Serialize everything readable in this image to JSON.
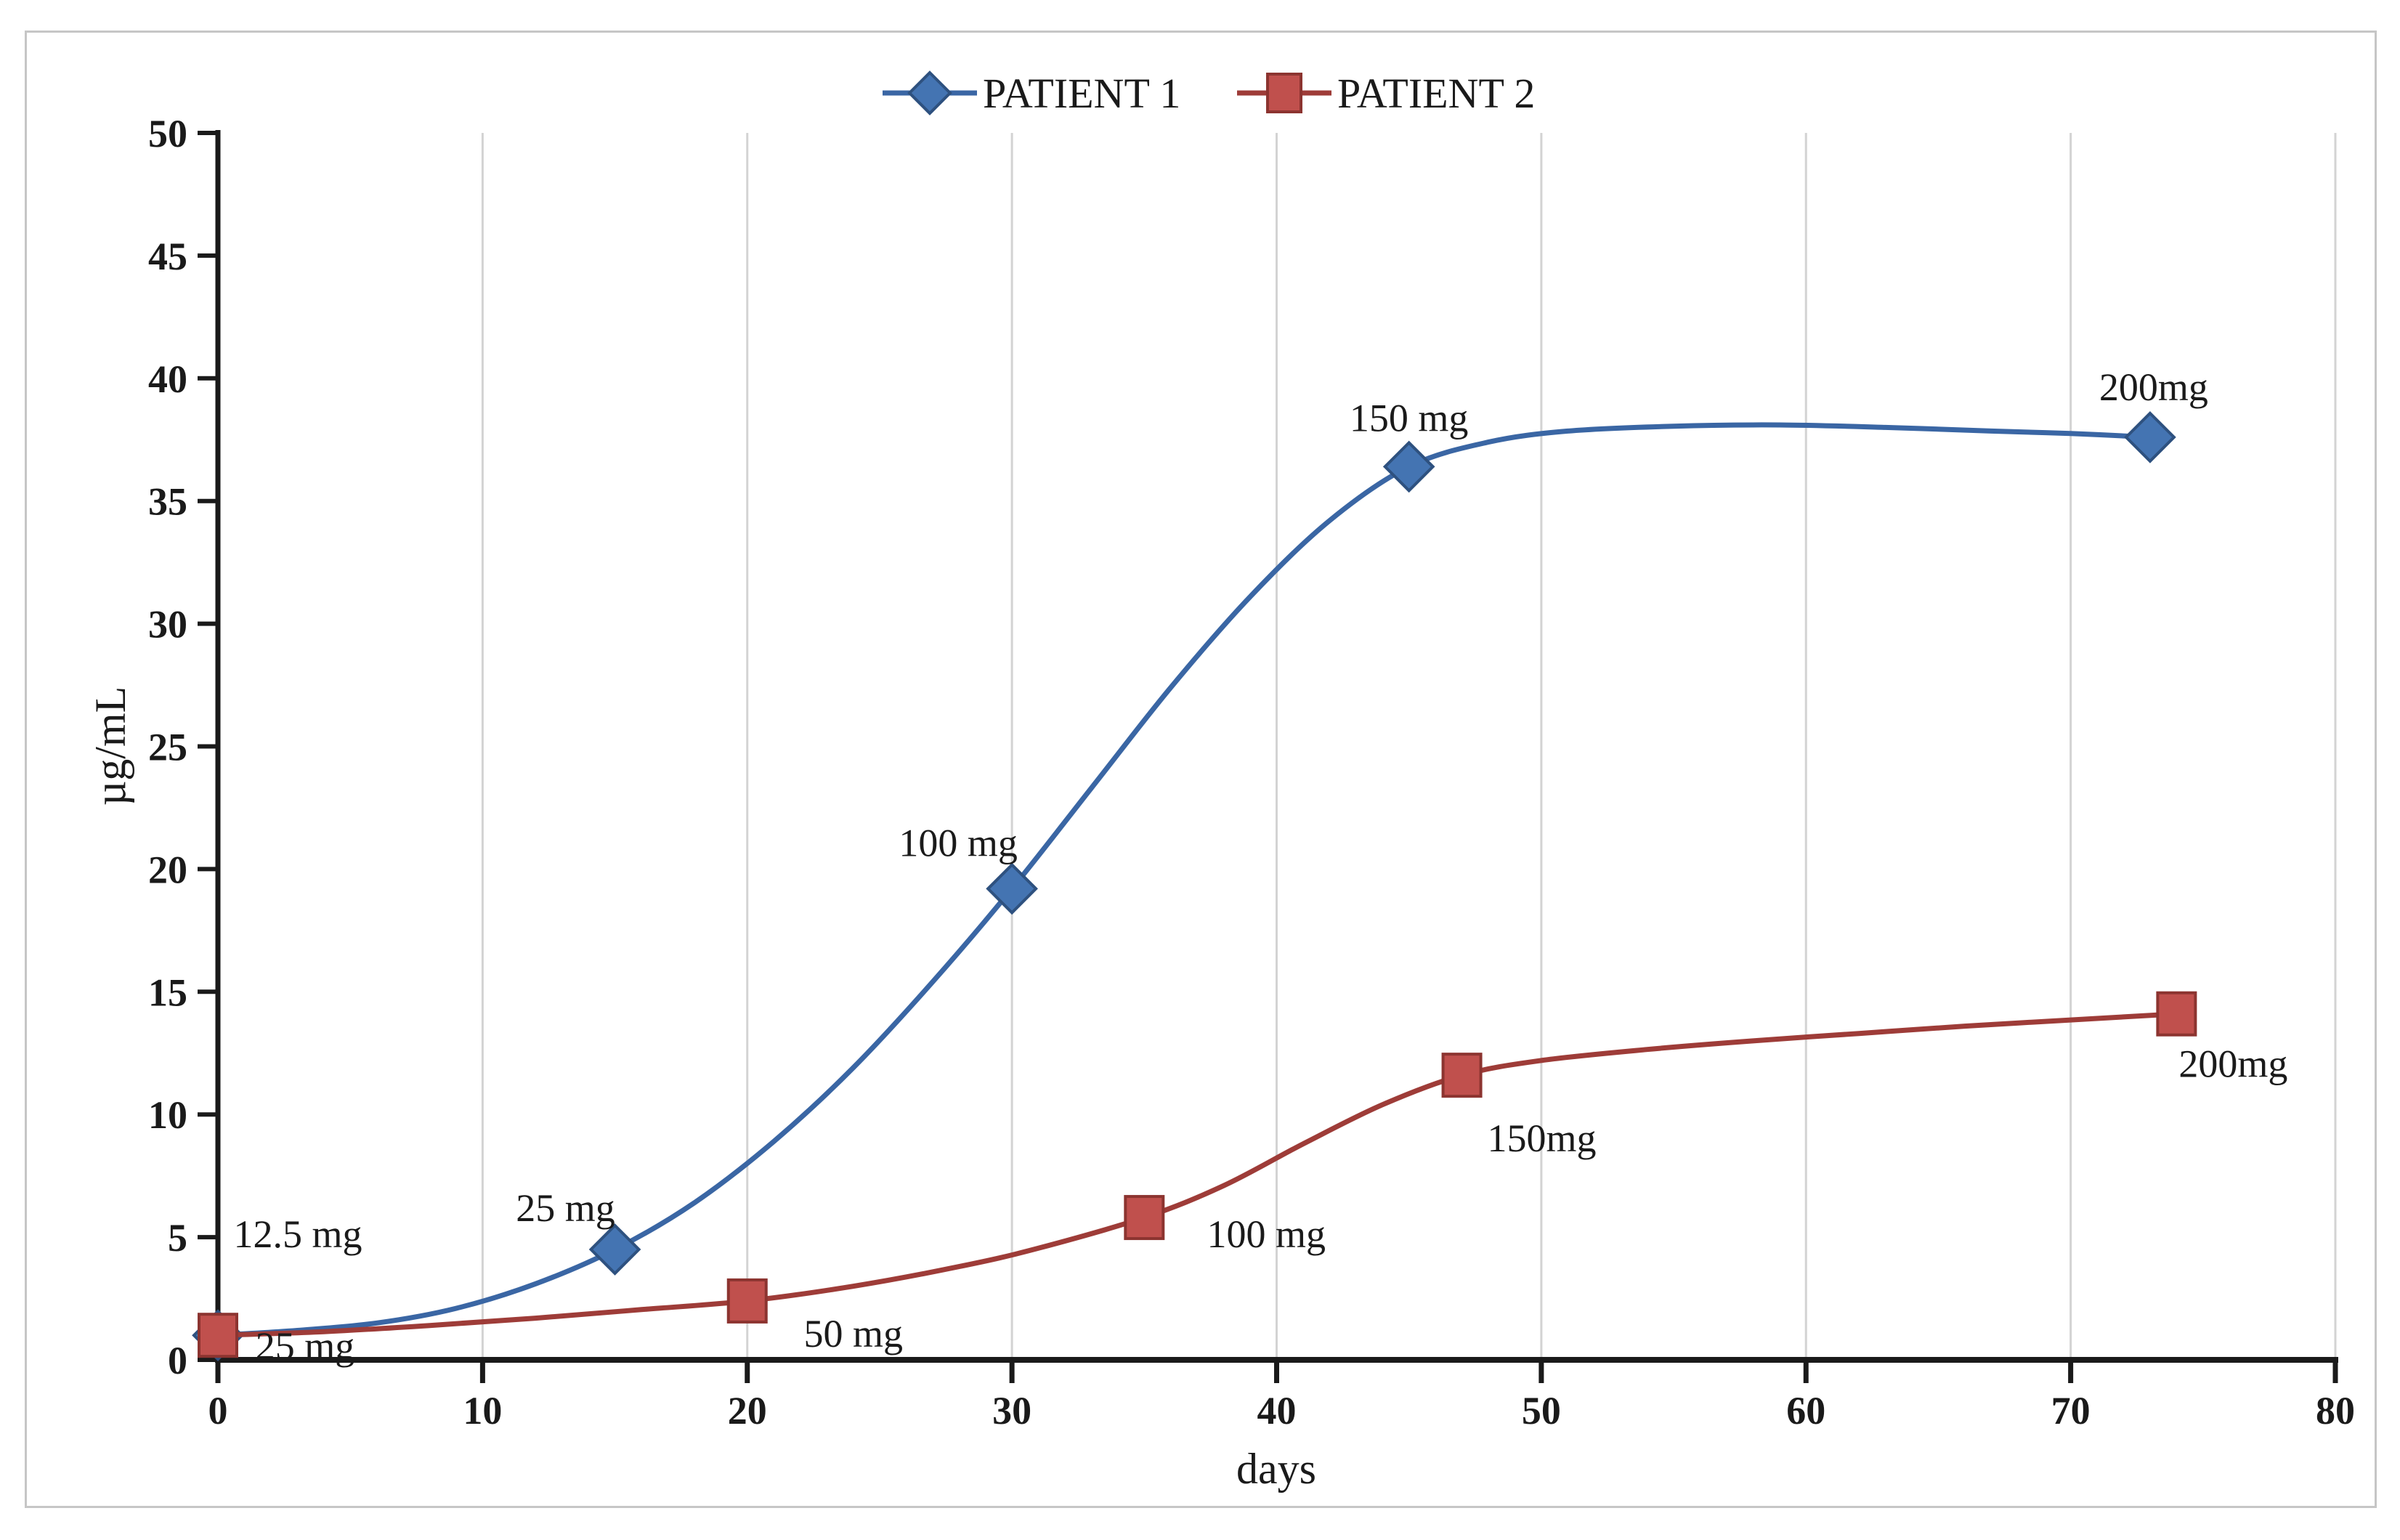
{
  "figure": {
    "background": "#ffffff",
    "frame_border_color": "#c6c6c6",
    "gridline_color": "#d3d3d3",
    "axis_color": "#1a1a1a",
    "text_color": "#1a1a1a"
  },
  "legend": {
    "position": "top-center",
    "items": [
      {
        "label": "PATIENT 1",
        "marker": "diamond",
        "color": "#3a66a4"
      },
      {
        "label": "PATIENT 2",
        "marker": "square",
        "color": "#9e3c38"
      }
    ]
  },
  "chart_data": {
    "type": "line",
    "title": "",
    "xlabel": "days",
    "ylabel": "µg/mL",
    "xlim": [
      0,
      80
    ],
    "ylim": [
      0,
      50
    ],
    "x_ticks": [
      0,
      10,
      20,
      30,
      40,
      50,
      60,
      70,
      80
    ],
    "y_ticks": [
      0,
      5,
      10,
      15,
      20,
      25,
      30,
      35,
      40,
      45,
      50
    ],
    "grid": "vertical-only",
    "legend_position": "top-center",
    "series": [
      {
        "name": "PATIENT 1",
        "marker": "diamond",
        "line_color": "#3a66a4",
        "marker_fill": "#4474b2",
        "marker_stroke": "#2e517f",
        "points": [
          {
            "day": 0,
            "value": 1.0,
            "dose_label": "12.5 mg"
          },
          {
            "day": 15,
            "value": 4.5,
            "dose_label": "25 mg"
          },
          {
            "day": 30,
            "value": 19.2,
            "dose_label": "100 mg"
          },
          {
            "day": 45,
            "value": 36.4,
            "dose_label": "150 mg"
          },
          {
            "day": 73,
            "value": 37.6,
            "dose_label": "200mg"
          }
        ],
        "smooth_curve": [
          [
            0,
            1
          ],
          [
            3,
            1.2
          ],
          [
            6,
            1.5
          ],
          [
            9,
            2.1
          ],
          [
            12,
            3.1
          ],
          [
            15,
            4.5
          ],
          [
            18,
            6.4
          ],
          [
            21,
            8.9
          ],
          [
            24,
            11.9
          ],
          [
            27,
            15.4
          ],
          [
            30,
            19.2
          ],
          [
            33,
            23.3
          ],
          [
            36,
            27.4
          ],
          [
            39,
            31.1
          ],
          [
            42,
            34.2
          ],
          [
            45,
            36.4
          ],
          [
            48,
            37.4
          ],
          [
            51,
            37.85
          ],
          [
            55,
            38.05
          ],
          [
            59,
            38.1
          ],
          [
            63,
            38.0
          ],
          [
            67,
            37.85
          ],
          [
            70,
            37.75
          ],
          [
            73,
            37.6
          ]
        ]
      },
      {
        "name": "PATIENT 2",
        "marker": "square",
        "line_color": "#9e3c38",
        "marker_fill": "#c0504d",
        "marker_stroke": "#8c3430",
        "points": [
          {
            "day": 0,
            "value": 1.0,
            "dose_label": "25 mg"
          },
          {
            "day": 20,
            "value": 2.4,
            "dose_label": "50 mg"
          },
          {
            "day": 35,
            "value": 5.8,
            "dose_label": "100 mg"
          },
          {
            "day": 47,
            "value": 11.6,
            "dose_label": "150mg"
          },
          {
            "day": 74,
            "value": 14.1,
            "dose_label": "200mg"
          }
        ],
        "smooth_curve": [
          [
            0,
            1
          ],
          [
            4,
            1.15
          ],
          [
            8,
            1.4
          ],
          [
            12,
            1.7
          ],
          [
            16,
            2.05
          ],
          [
            20,
            2.4
          ],
          [
            24,
            3.0
          ],
          [
            28,
            3.8
          ],
          [
            31,
            4.55
          ],
          [
            35,
            5.8
          ],
          [
            38,
            7.1
          ],
          [
            41,
            8.8
          ],
          [
            44,
            10.4
          ],
          [
            47,
            11.6
          ],
          [
            50,
            12.2
          ],
          [
            54,
            12.65
          ],
          [
            58,
            13.0
          ],
          [
            62,
            13.3
          ],
          [
            66,
            13.6
          ],
          [
            70,
            13.85
          ],
          [
            74,
            14.1
          ]
        ]
      }
    ]
  }
}
